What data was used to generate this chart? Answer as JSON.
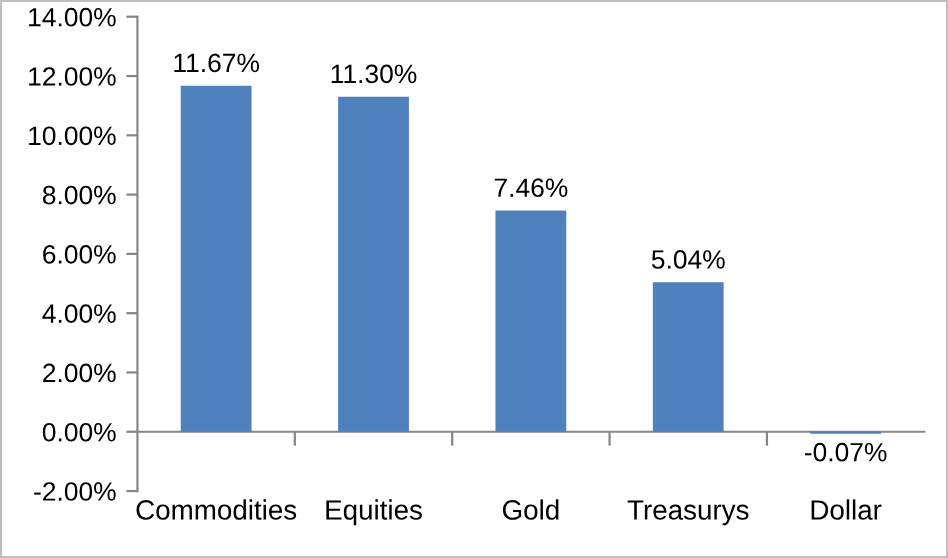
{
  "chart_data": {
    "type": "bar",
    "categories": [
      "Commodities",
      "Equities",
      "Gold",
      "Treasurys",
      "Dollar"
    ],
    "values": [
      11.67,
      11.3,
      7.46,
      5.04,
      -0.07
    ],
    "value_labels": [
      "11.67%",
      "11.30%",
      "7.46%",
      "5.04%",
      "-0.07%"
    ],
    "color": "#4f81bd",
    "ylim": [
      -2,
      14
    ],
    "yticks": [
      {
        "value": -2,
        "label": "-2.00%"
      },
      {
        "value": 0,
        "label": "0.00%"
      },
      {
        "value": 2,
        "label": "2.00%"
      },
      {
        "value": 4,
        "label": "4.00%"
      },
      {
        "value": 6,
        "label": "6.00%"
      },
      {
        "value": 8,
        "label": "8.00%"
      },
      {
        "value": 10,
        "label": "10.00%"
      },
      {
        "value": 12,
        "label": "12.00%"
      },
      {
        "value": 14,
        "label": "14.00%"
      }
    ],
    "grid": false,
    "legend": false
  }
}
